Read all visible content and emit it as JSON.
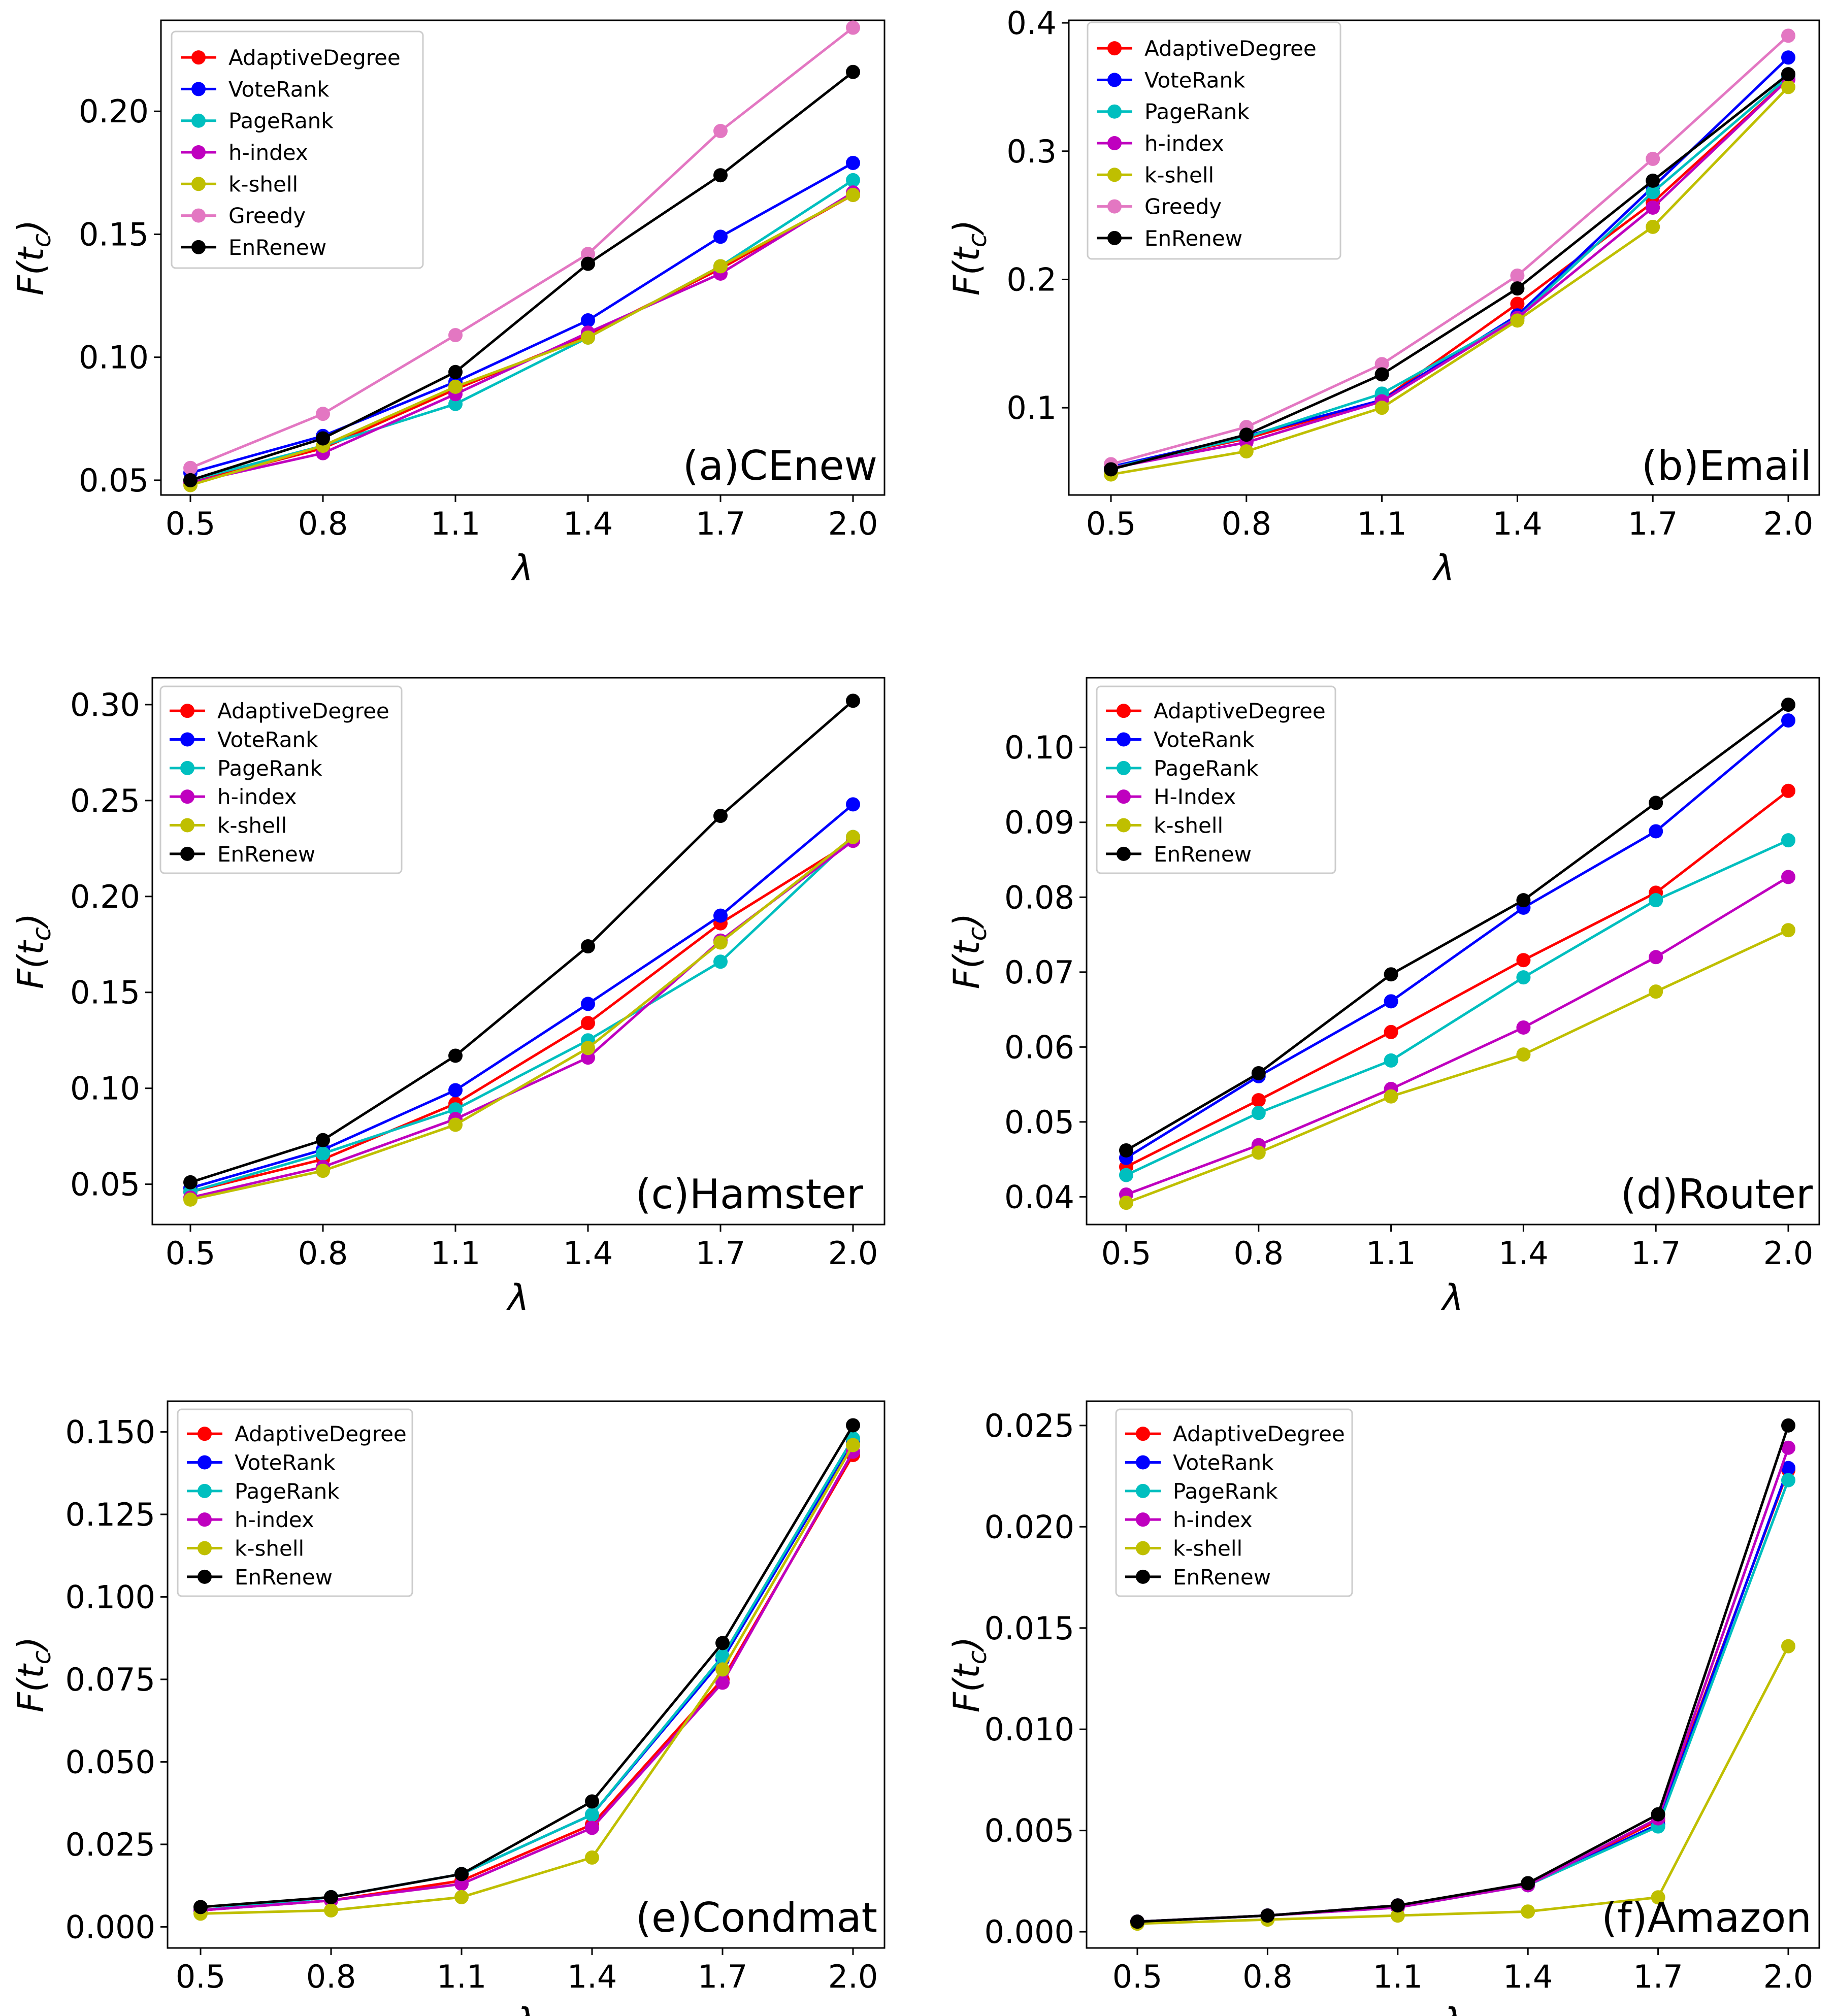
{
  "figure": {
    "panels": [
      {
        "id": "a",
        "tag": "(a)CEnew"
      },
      {
        "id": "b",
        "tag": "(b)Email"
      },
      {
        "id": "c",
        "tag": "(c)Hamster"
      },
      {
        "id": "d",
        "tag": "(d)Router"
      },
      {
        "id": "e",
        "tag": "(e)Condmat"
      },
      {
        "id": "f",
        "tag": "(f)Amazon"
      }
    ]
  },
  "series_colors": {
    "AdaptiveDegree": "#ff0000",
    "VoteRank": "#0000ff",
    "PageRank": "#00bfbf",
    "h-index": "#bf00bf",
    "H-Index": "#bf00bf",
    "k-shell": "#bfbf00",
    "Greedy": "#e377c2",
    "EnRenew": "#000000"
  },
  "chart_data": [
    {
      "type": "line",
      "title": "(a)CEnew",
      "xlabel": "λ",
      "ylabel": "F(t_c)",
      "x": [
        0.5,
        0.8,
        1.1,
        1.4,
        1.7,
        2.0
      ],
      "xticks": [
        "0.5",
        "0.8",
        "1.1",
        "1.4",
        "1.7",
        "2.0"
      ],
      "ylim": [
        0.044,
        0.237
      ],
      "yticks": [
        "0.05",
        "0.10",
        "0.15",
        "0.20"
      ],
      "legend_position": "top-left",
      "grid": false,
      "series": [
        {
          "name": "AdaptiveDegree",
          "values": [
            0.049,
            0.063,
            0.087,
            0.109,
            0.136,
            0.166
          ]
        },
        {
          "name": "VoteRank",
          "values": [
            0.053,
            0.068,
            0.09,
            0.115,
            0.149,
            0.179
          ]
        },
        {
          "name": "PageRank",
          "values": [
            0.05,
            0.064,
            0.081,
            0.108,
            0.137,
            0.172
          ]
        },
        {
          "name": "h-index",
          "values": [
            0.049,
            0.061,
            0.085,
            0.11,
            0.134,
            0.167
          ]
        },
        {
          "name": "k-shell",
          "values": [
            0.048,
            0.064,
            0.088,
            0.108,
            0.137,
            0.166
          ]
        },
        {
          "name": "Greedy",
          "values": [
            0.055,
            0.077,
            0.109,
            0.142,
            0.192,
            0.234
          ]
        },
        {
          "name": "EnRenew",
          "values": [
            0.05,
            0.067,
            0.094,
            0.138,
            0.174,
            0.216
          ]
        }
      ]
    },
    {
      "type": "line",
      "title": "(b)Email",
      "xlabel": "λ",
      "ylabel": "F(t_c)",
      "x": [
        0.5,
        0.8,
        1.1,
        1.4,
        1.7,
        2.0
      ],
      "xticks": [
        "0.5",
        "0.8",
        "1.1",
        "1.4",
        "1.7",
        "2.0"
      ],
      "ylim": [
        0.032,
        0.402
      ],
      "yticks": [
        "0.1",
        "0.2",
        "0.3",
        "0.4"
      ],
      "legend_position": "top-left",
      "grid": false,
      "series": [
        {
          "name": "AdaptiveDegree",
          "values": [
            0.053,
            0.076,
            0.106,
            0.181,
            0.26,
            0.356
          ]
        },
        {
          "name": "VoteRank",
          "values": [
            0.054,
            0.078,
            0.106,
            0.172,
            0.272,
            0.373
          ]
        },
        {
          "name": "PageRank",
          "values": [
            0.053,
            0.077,
            0.111,
            0.17,
            0.268,
            0.358
          ]
        },
        {
          "name": "h-index",
          "values": [
            0.053,
            0.073,
            0.105,
            0.17,
            0.256,
            0.356
          ]
        },
        {
          "name": "k-shell",
          "values": [
            0.048,
            0.066,
            0.1,
            0.168,
            0.241,
            0.35
          ]
        },
        {
          "name": "Greedy",
          "values": [
            0.056,
            0.085,
            0.134,
            0.203,
            0.294,
            0.39
          ]
        },
        {
          "name": "EnRenew",
          "values": [
            0.052,
            0.079,
            0.126,
            0.193,
            0.277,
            0.36
          ]
        }
      ]
    },
    {
      "type": "line",
      "title": "(c)Hamster",
      "xlabel": "λ",
      "ylabel": "F(t_c)",
      "x": [
        0.5,
        0.8,
        1.1,
        1.4,
        1.7,
        2.0
      ],
      "xticks": [
        "0.5",
        "0.8",
        "1.1",
        "1.4",
        "1.7",
        "2.0"
      ],
      "ylim": [
        0.029,
        0.314
      ],
      "yticks": [
        "0.05",
        "0.10",
        "0.15",
        "0.20",
        "0.25",
        "0.30"
      ],
      "legend_position": "top-left",
      "grid": false,
      "series": [
        {
          "name": "AdaptiveDegree",
          "values": [
            0.046,
            0.063,
            0.092,
            0.134,
            0.186,
            0.229
          ]
        },
        {
          "name": "VoteRank",
          "values": [
            0.048,
            0.068,
            0.099,
            0.144,
            0.19,
            0.248
          ]
        },
        {
          "name": "PageRank",
          "values": [
            0.046,
            0.066,
            0.089,
            0.125,
            0.166,
            0.231
          ]
        },
        {
          "name": "h-index",
          "values": [
            0.043,
            0.059,
            0.084,
            0.116,
            0.177,
            0.229
          ]
        },
        {
          "name": "k-shell",
          "values": [
            0.042,
            0.057,
            0.081,
            0.121,
            0.176,
            0.231
          ]
        },
        {
          "name": "EnRenew",
          "values": [
            0.051,
            0.073,
            0.117,
            0.174,
            0.242,
            0.302
          ]
        }
      ]
    },
    {
      "type": "line",
      "title": "(d)Router",
      "xlabel": "λ",
      "ylabel": "F(t_c)",
      "x": [
        0.5,
        0.8,
        1.1,
        1.4,
        1.7,
        2.0
      ],
      "xticks": [
        "0.5",
        "0.8",
        "1.1",
        "1.4",
        "1.7",
        "2.0"
      ],
      "ylim": [
        0.0363,
        0.1093
      ],
      "yticks": [
        "0.04",
        "0.05",
        "0.06",
        "0.07",
        "0.08",
        "0.09",
        "0.10"
      ],
      "legend_position": "top-left",
      "grid": false,
      "series": [
        {
          "name": "AdaptiveDegree",
          "values": [
            0.044,
            0.0529,
            0.062,
            0.0716,
            0.0806,
            0.0942
          ]
        },
        {
          "name": "VoteRank",
          "values": [
            0.0452,
            0.0561,
            0.0661,
            0.0786,
            0.0888,
            0.1036
          ]
        },
        {
          "name": "PageRank",
          "values": [
            0.0429,
            0.0512,
            0.0582,
            0.0693,
            0.0796,
            0.0876
          ]
        },
        {
          "name": "H-Index",
          "values": [
            0.0403,
            0.0469,
            0.0544,
            0.0626,
            0.072,
            0.0827
          ]
        },
        {
          "name": "k-shell",
          "values": [
            0.0392,
            0.0459,
            0.0534,
            0.059,
            0.0674,
            0.0756
          ]
        },
        {
          "name": "EnRenew",
          "values": [
            0.0462,
            0.0565,
            0.0697,
            0.0796,
            0.0926,
            0.1057
          ]
        }
      ]
    },
    {
      "type": "line",
      "title": "(e)Condmat",
      "xlabel": "λ",
      "ylabel": "F(t_c)",
      "x": [
        0.5,
        0.8,
        1.1,
        1.4,
        1.7,
        2.0
      ],
      "xticks": [
        "0.5",
        "0.8",
        "1.1",
        "1.4",
        "1.7",
        "2.0"
      ],
      "ylim": [
        -0.0064,
        0.1593
      ],
      "yticks": [
        "0.000",
        "0.025",
        "0.050",
        "0.075",
        "0.100",
        "0.125",
        "0.150"
      ],
      "legend_position": "top-left",
      "grid": false,
      "series": [
        {
          "name": "AdaptiveDegree",
          "values": [
            0.005,
            0.008,
            0.014,
            0.031,
            0.075,
            0.143
          ]
        },
        {
          "name": "VoteRank",
          "values": [
            0.005,
            0.009,
            0.016,
            0.034,
            0.081,
            0.147
          ]
        },
        {
          "name": "PageRank",
          "values": [
            0.005,
            0.009,
            0.016,
            0.034,
            0.082,
            0.148
          ]
        },
        {
          "name": "h-index",
          "values": [
            0.005,
            0.008,
            0.013,
            0.03,
            0.074,
            0.144
          ]
        },
        {
          "name": "k-shell",
          "values": [
            0.004,
            0.005,
            0.009,
            0.021,
            0.078,
            0.146
          ]
        },
        {
          "name": "EnRenew",
          "values": [
            0.006,
            0.009,
            0.016,
            0.038,
            0.086,
            0.152
          ]
        }
      ]
    },
    {
      "type": "line",
      "title": "(f)Amazon",
      "xlabel": "λ",
      "ylabel": "F(t_c)",
      "x": [
        0.5,
        0.8,
        1.1,
        1.4,
        1.7,
        2.0
      ],
      "xticks": [
        "0.5",
        "0.8",
        "1.1",
        "1.4",
        "1.7",
        "2.0"
      ],
      "ylim": [
        -0.0008,
        0.0262
      ],
      "yticks": [
        "0.000",
        "0.005",
        "0.010",
        "0.015",
        "0.020",
        "0.025"
      ],
      "legend_position": "top-left",
      "grid": false,
      "series": [
        {
          "name": "AdaptiveDegree",
          "values": [
            0.0005,
            0.0008,
            0.0013,
            0.0023,
            0.0055,
            0.0228
          ]
        },
        {
          "name": "VoteRank",
          "values": [
            0.0005,
            0.0008,
            0.0013,
            0.0023,
            0.0053,
            0.0229
          ]
        },
        {
          "name": "PageRank",
          "values": [
            0.0005,
            0.0008,
            0.0012,
            0.0023,
            0.0052,
            0.0223
          ]
        },
        {
          "name": "h-index",
          "values": [
            0.0005,
            0.0008,
            0.0012,
            0.0023,
            0.0056,
            0.0239
          ]
        },
        {
          "name": "k-shell",
          "values": [
            0.0004,
            0.0006,
            0.0008,
            0.001,
            0.0017,
            0.0141
          ]
        },
        {
          "name": "EnRenew",
          "values": [
            0.0005,
            0.0008,
            0.0013,
            0.0024,
            0.0058,
            0.025
          ]
        }
      ]
    }
  ]
}
